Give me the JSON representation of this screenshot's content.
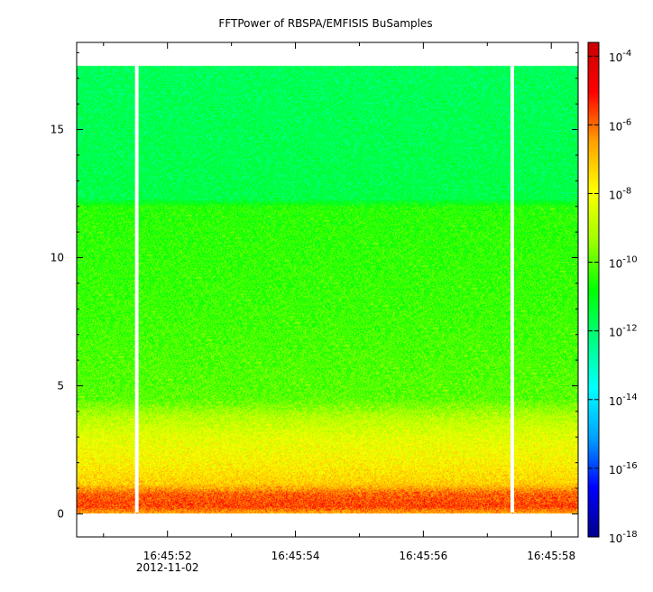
{
  "chart_data": {
    "type": "heatmap",
    "title": "FFTPower of RBSPA/EMFISIS  BuSamples",
    "xlabel": "",
    "ylabel": "",
    "x_ticks": [
      {
        "label": "16:45:52",
        "sub": "2012-11-02",
        "t": 52.0
      },
      {
        "label": "16:45:54",
        "sub": "",
        "t": 54.0
      },
      {
        "label": "16:45:56",
        "sub": "",
        "t": 56.0
      },
      {
        "label": "16:45:58",
        "sub": "",
        "t": 58.0
      }
    ],
    "x_minor_ticks": [
      51.0,
      53.0,
      55.0,
      57.0
    ],
    "xlim": [
      50.58,
      58.42
    ],
    "y_ticks": [
      0,
      5,
      10,
      15
    ],
    "ylim": [
      -0.9,
      18.4
    ],
    "data_extent": {
      "t_start": 50.58,
      "t_end": 58.42,
      "f_min": 0.05,
      "f_max": 17.5
    },
    "data_gaps_t": [
      51.52,
      57.39
    ],
    "colorbar": {
      "scale": "log",
      "min_exp": -18,
      "max_exp": -3.6,
      "tick_labels": [
        {
          "base": "10",
          "exp": "-18",
          "value": -18
        },
        {
          "base": "10",
          "exp": "-16",
          "value": -16
        },
        {
          "base": "10",
          "exp": "-14",
          "value": -14
        },
        {
          "base": "10",
          "exp": "-12",
          "value": -12
        },
        {
          "base": "10",
          "exp": "-10",
          "value": -10
        },
        {
          "base": "10",
          "exp": "-8",
          "value": -8
        },
        {
          "base": "10",
          "exp": "-6",
          "value": -6
        },
        {
          "base": "10",
          "exp": "-4",
          "value": -4
        }
      ],
      "colors": [
        "#00008c",
        "#0000ff",
        "#00a0ff",
        "#00ffff",
        "#00ff80",
        "#00ff00",
        "#a0ff00",
        "#ffff00",
        "#ffa000",
        "#ff0000",
        "#c80000"
      ]
    },
    "power_profile_log10": [
      {
        "f": 0.05,
        "v": -6.6
      },
      {
        "f": 0.3,
        "v": -5.6
      },
      {
        "f": 0.8,
        "v": -5.9
      },
      {
        "f": 1.2,
        "v": -7.2
      },
      {
        "f": 2.0,
        "v": -7.8
      },
      {
        "f": 3.0,
        "v": -8.3
      },
      {
        "f": 3.8,
        "v": -9.0
      },
      {
        "f": 4.5,
        "v": -10.0
      },
      {
        "f": 8.0,
        "v": -10.3
      },
      {
        "f": 12.0,
        "v": -10.5
      },
      {
        "f": 12.3,
        "v": -11.6
      },
      {
        "f": 17.5,
        "v": -11.8
      }
    ]
  }
}
